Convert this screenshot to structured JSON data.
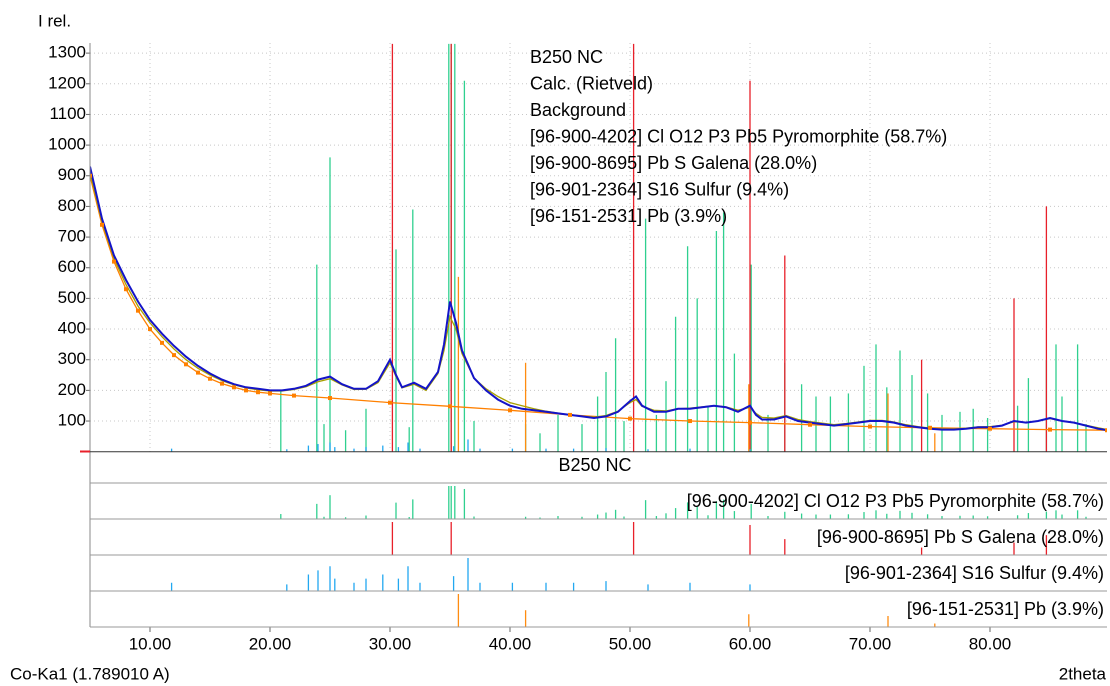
{
  "chart_data": {
    "type": "line",
    "y_label": "I rel.",
    "x_label": "2theta",
    "annotation": "Co-Ka1 (1.789010 A)",
    "xlim": [
      5,
      89.75
    ],
    "ylim": [
      0,
      1333
    ],
    "xticks": [
      {
        "value": 10,
        "label": "10.00"
      },
      {
        "value": 20,
        "label": "20.00"
      },
      {
        "value": 30,
        "label": "30.00"
      },
      {
        "value": 40,
        "label": "40.00"
      },
      {
        "value": 50,
        "label": "50.00"
      },
      {
        "value": 60,
        "label": "60.00"
      },
      {
        "value": 70,
        "label": "70.00"
      },
      {
        "value": 80,
        "label": "80.00"
      }
    ],
    "yticks": [
      100,
      200,
      300,
      400,
      500,
      600,
      700,
      800,
      900,
      1000,
      1100,
      1200,
      1300
    ],
    "grid": true,
    "series": [
      {
        "name": "B250 NC",
        "color": "#1414c8",
        "x": [
          5,
          6,
          7,
          8,
          9,
          10,
          11,
          12,
          13,
          14,
          15,
          16,
          17,
          18,
          19,
          20,
          21,
          22,
          23,
          24,
          25,
          26,
          27,
          28,
          29,
          30,
          30.5,
          31,
          32,
          33,
          34,
          34.5,
          35,
          35.5,
          36,
          37,
          38,
          39,
          40,
          41,
          42,
          43,
          44,
          45,
          46,
          47,
          48,
          49,
          50,
          50.5,
          51,
          52,
          53,
          54,
          55,
          56,
          57,
          58,
          59,
          60,
          60.5,
          61,
          62,
          63,
          64,
          65,
          66,
          67,
          68,
          69,
          70,
          71,
          72,
          73,
          74,
          75,
          76,
          77,
          78,
          79,
          80,
          81,
          82,
          83,
          84,
          85,
          86,
          87,
          88,
          89,
          89.75
        ],
        "values": [
          930,
          760,
          640,
          560,
          490,
          430,
          385,
          345,
          310,
          280,
          255,
          235,
          220,
          210,
          205,
          200,
          200,
          205,
          215,
          235,
          245,
          220,
          205,
          205,
          230,
          300,
          250,
          210,
          225,
          205,
          260,
          350,
          490,
          420,
          330,
          240,
          200,
          170,
          150,
          140,
          135,
          130,
          125,
          120,
          115,
          110,
          115,
          130,
          165,
          180,
          150,
          130,
          130,
          140,
          140,
          145,
          150,
          145,
          130,
          150,
          120,
          105,
          105,
          115,
          100,
          95,
          90,
          85,
          90,
          95,
          100,
          100,
          95,
          85,
          80,
          75,
          72,
          72,
          75,
          80,
          80,
          85,
          100,
          95,
          100,
          110,
          100,
          95,
          85,
          75,
          70
        ]
      },
      {
        "name": "Calc. (Rietveld)",
        "color": "#a8a000",
        "x": [
          5,
          6,
          7,
          8,
          9,
          10,
          11,
          12,
          13,
          14,
          15,
          16,
          17,
          18,
          19,
          20,
          21,
          22,
          23,
          24,
          25,
          26,
          27,
          28,
          29,
          30,
          30.5,
          31,
          32,
          33,
          34,
          34.5,
          35,
          35.5,
          36,
          37,
          38,
          39,
          40,
          41,
          42,
          43,
          44,
          45,
          46,
          47,
          48,
          49,
          50,
          50.5,
          51,
          52,
          53,
          54,
          55,
          56,
          57,
          58,
          59,
          60,
          60.5,
          61,
          62,
          63,
          64,
          65,
          66,
          67,
          68,
          69,
          70,
          71,
          72,
          73,
          74,
          75,
          76,
          77,
          78,
          79,
          80,
          81,
          82,
          83,
          84,
          85,
          86,
          87,
          88,
          89,
          89.75
        ],
        "values": [
          910,
          750,
          630,
          545,
          475,
          420,
          375,
          335,
          300,
          272,
          250,
          232,
          218,
          208,
          202,
          198,
          198,
          203,
          212,
          228,
          238,
          218,
          203,
          204,
          225,
          290,
          245,
          208,
          220,
          200,
          255,
          330,
          440,
          400,
          320,
          240,
          205,
          180,
          160,
          150,
          140,
          132,
          126,
          120,
          116,
          113,
          118,
          132,
          160,
          170,
          148,
          135,
          133,
          140,
          142,
          146,
          150,
          146,
          135,
          145,
          125,
          112,
          110,
          118,
          105,
          98,
          93,
          88,
          92,
          97,
          102,
          102,
          97,
          88,
          82,
          77,
          74,
          74,
          77,
          81,
          82,
          86,
          98,
          96,
          100,
          108,
          100,
          94,
          86,
          78,
          72
        ]
      },
      {
        "name": "Background",
        "color": "#ff8000",
        "x": [
          5,
          6,
          7,
          8,
          9,
          10,
          11,
          12,
          13,
          14,
          15,
          16,
          17,
          18,
          19,
          20,
          22,
          25,
          30,
          35,
          40,
          45,
          50,
          55,
          60,
          65,
          70,
          75,
          80,
          85,
          89.75
        ],
        "values": [
          900,
          740,
          620,
          530,
          460,
          400,
          355,
          315,
          285,
          258,
          238,
          222,
          210,
          200,
          194,
          190,
          183,
          175,
          160,
          148,
          135,
          120,
          108,
          100,
          95,
          88,
          82,
          78,
          75,
          72,
          70
        ]
      }
    ],
    "phases": [
      {
        "name": "[96-900-4202] Cl O12 P3 Pb5  Pyromorphite (58.7%)",
        "color": "#2fd08f",
        "positions": [
          20.9,
          23.9,
          24.5,
          25.0,
          26.3,
          28.0,
          30.5,
          31.6,
          31.9,
          34.9,
          35.1,
          35.4,
          36.2,
          37.0,
          41.3,
          42.5,
          44.0,
          46.0,
          47.3,
          48.0,
          48.8,
          49.5,
          51.3,
          52.2,
          53.0,
          53.8,
          54.8,
          55.6,
          56.5,
          57.2,
          57.8,
          58.7,
          60.1,
          61.5,
          62.9,
          64.3,
          65.5,
          66.7,
          68.2,
          69.5,
          70.5,
          71.4,
          72.5,
          73.5,
          74.8,
          76.0,
          77.5,
          78.6,
          79.8,
          82.3,
          83.2,
          84.7,
          85.5,
          86.0,
          87.3,
          88.0
        ],
        "values": [
          200,
          610,
          90,
          960,
          70,
          140,
          660,
          80,
          790,
          1330,
          1330,
          1330,
          1210,
          100,
          90,
          60,
          120,
          90,
          180,
          260,
          370,
          100,
          760,
          120,
          230,
          440,
          670,
          500,
          150,
          720,
          780,
          320,
          610,
          120,
          290,
          220,
          180,
          180,
          190,
          280,
          350,
          210,
          330,
          250,
          190,
          120,
          130,
          140,
          110,
          150,
          240,
          300,
          350,
          180,
          350,
          90
        ]
      },
      {
        "name": "[96-900-8695] Pb S  Galena (28.0%)",
        "color": "#e8202a",
        "positions": [
          30.2,
          35.1,
          50.3,
          60.0,
          62.9,
          74.3,
          82.0,
          84.7
        ],
        "values": [
          1330,
          1330,
          1330,
          1210,
          640,
          300,
          500,
          800
        ]
      },
      {
        "name": "[96-901-2364] S16  Sulfur (9.4%)",
        "color": "#22a8f0",
        "positions": [
          11.8,
          21.4,
          23.2,
          24.0,
          25.0,
          25.4,
          27.0,
          28.0,
          29.4,
          30.7,
          31.5,
          32.5,
          35.3,
          36.5,
          37.5,
          40.2,
          43.0,
          45.3,
          48.0,
          51.5,
          55.0,
          60.0
        ],
        "values": [
          10,
          8,
          20,
          25,
          30,
          15,
          10,
          15,
          20,
          15,
          30,
          10,
          18,
          40,
          10,
          10,
          10,
          10,
          12,
          8,
          10,
          8
        ]
      },
      {
        "name": "[96-151-2531] Pb  (3.9%)",
        "color": "#ff8c10",
        "positions": [
          35.7,
          41.3,
          59.9,
          71.5,
          75.4
        ],
        "values": [
          570,
          290,
          220,
          190,
          60
        ]
      }
    ]
  }
}
